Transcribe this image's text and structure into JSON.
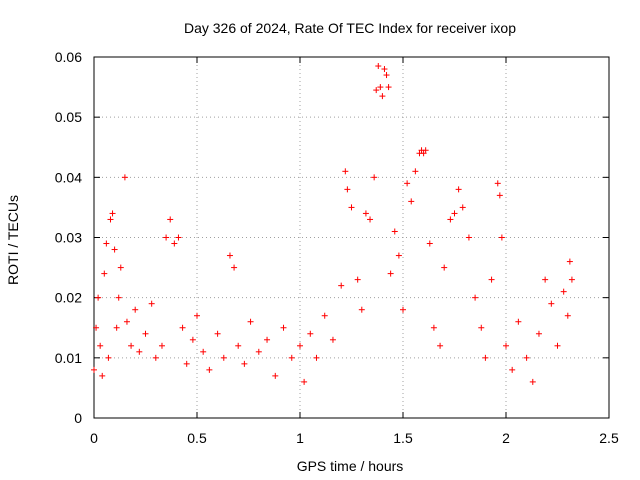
{
  "chart_data": {
    "type": "scatter",
    "title": "Day 326 of 2024, Rate Of TEC Index for receiver ixop",
    "xlabel": "GPS time / hours",
    "ylabel": "ROTI / TECUs",
    "xlim": [
      0,
      2.5
    ],
    "ylim": [
      0,
      0.06
    ],
    "xticks": [
      0,
      0.5,
      1,
      1.5,
      2,
      2.5
    ],
    "xtick_labels": [
      "0",
      "0.5",
      "1",
      "1.5",
      "2",
      "2.5"
    ],
    "yticks": [
      0,
      0.01,
      0.02,
      0.03,
      0.04,
      0.05,
      0.06
    ],
    "ytick_labels": [
      "0",
      "0.01",
      "0.02",
      "0.03",
      "0.04",
      "0.05",
      "0.06"
    ],
    "grid": true,
    "marker": "+",
    "color": "#ff0000",
    "series": [
      {
        "name": "ROTI",
        "points": [
          [
            0.0,
            0.008
          ],
          [
            0.01,
            0.015
          ],
          [
            0.02,
            0.02
          ],
          [
            0.03,
            0.012
          ],
          [
            0.04,
            0.007
          ],
          [
            0.05,
            0.024
          ],
          [
            0.06,
            0.029
          ],
          [
            0.07,
            0.01
          ],
          [
            0.08,
            0.033
          ],
          [
            0.09,
            0.034
          ],
          [
            0.1,
            0.028
          ],
          [
            0.11,
            0.015
          ],
          [
            0.12,
            0.02
          ],
          [
            0.13,
            0.025
          ],
          [
            0.15,
            0.04
          ],
          [
            0.16,
            0.016
          ],
          [
            0.18,
            0.012
          ],
          [
            0.2,
            0.018
          ],
          [
            0.22,
            0.011
          ],
          [
            0.25,
            0.014
          ],
          [
            0.28,
            0.019
          ],
          [
            0.3,
            0.01
          ],
          [
            0.33,
            0.012
          ],
          [
            0.35,
            0.03
          ],
          [
            0.37,
            0.033
          ],
          [
            0.39,
            0.029
          ],
          [
            0.41,
            0.03
          ],
          [
            0.43,
            0.015
          ],
          [
            0.45,
            0.009
          ],
          [
            0.48,
            0.013
          ],
          [
            0.5,
            0.017
          ],
          [
            0.53,
            0.011
          ],
          [
            0.56,
            0.008
          ],
          [
            0.6,
            0.014
          ],
          [
            0.63,
            0.01
          ],
          [
            0.66,
            0.027
          ],
          [
            0.68,
            0.025
          ],
          [
            0.7,
            0.012
          ],
          [
            0.73,
            0.009
          ],
          [
            0.76,
            0.016
          ],
          [
            0.8,
            0.011
          ],
          [
            0.84,
            0.013
          ],
          [
            0.88,
            0.007
          ],
          [
            0.92,
            0.015
          ],
          [
            0.96,
            0.01
          ],
          [
            1.0,
            0.012
          ],
          [
            1.02,
            0.006
          ],
          [
            1.05,
            0.014
          ],
          [
            1.08,
            0.01
          ],
          [
            1.12,
            0.017
          ],
          [
            1.16,
            0.013
          ],
          [
            1.2,
            0.022
          ],
          [
            1.22,
            0.041
          ],
          [
            1.23,
            0.038
          ],
          [
            1.25,
            0.035
          ],
          [
            1.28,
            0.023
          ],
          [
            1.3,
            0.018
          ],
          [
            1.32,
            0.034
          ],
          [
            1.34,
            0.033
          ],
          [
            1.36,
            0.04
          ],
          [
            1.37,
            0.0545
          ],
          [
            1.38,
            0.0585
          ],
          [
            1.39,
            0.055
          ],
          [
            1.4,
            0.0535
          ],
          [
            1.41,
            0.058
          ],
          [
            1.42,
            0.057
          ],
          [
            1.43,
            0.055
          ],
          [
            1.44,
            0.024
          ],
          [
            1.46,
            0.031
          ],
          [
            1.48,
            0.027
          ],
          [
            1.5,
            0.018
          ],
          [
            1.52,
            0.039
          ],
          [
            1.54,
            0.036
          ],
          [
            1.56,
            0.041
          ],
          [
            1.58,
            0.044
          ],
          [
            1.59,
            0.0445
          ],
          [
            1.6,
            0.044
          ],
          [
            1.61,
            0.0445
          ],
          [
            1.63,
            0.029
          ],
          [
            1.65,
            0.015
          ],
          [
            1.68,
            0.012
          ],
          [
            1.7,
            0.025
          ],
          [
            1.73,
            0.033
          ],
          [
            1.75,
            0.034
          ],
          [
            1.77,
            0.038
          ],
          [
            1.79,
            0.035
          ],
          [
            1.82,
            0.03
          ],
          [
            1.85,
            0.02
          ],
          [
            1.88,
            0.015
          ],
          [
            1.9,
            0.01
          ],
          [
            1.93,
            0.023
          ],
          [
            1.96,
            0.039
          ],
          [
            1.97,
            0.037
          ],
          [
            1.98,
            0.03
          ],
          [
            2.0,
            0.012
          ],
          [
            2.03,
            0.008
          ],
          [
            2.06,
            0.016
          ],
          [
            2.1,
            0.01
          ],
          [
            2.13,
            0.006
          ],
          [
            2.16,
            0.014
          ],
          [
            2.19,
            0.023
          ],
          [
            2.22,
            0.019
          ],
          [
            2.25,
            0.012
          ],
          [
            2.28,
            0.021
          ],
          [
            2.3,
            0.017
          ],
          [
            2.31,
            0.026
          ],
          [
            2.32,
            0.023
          ]
        ]
      }
    ]
  }
}
